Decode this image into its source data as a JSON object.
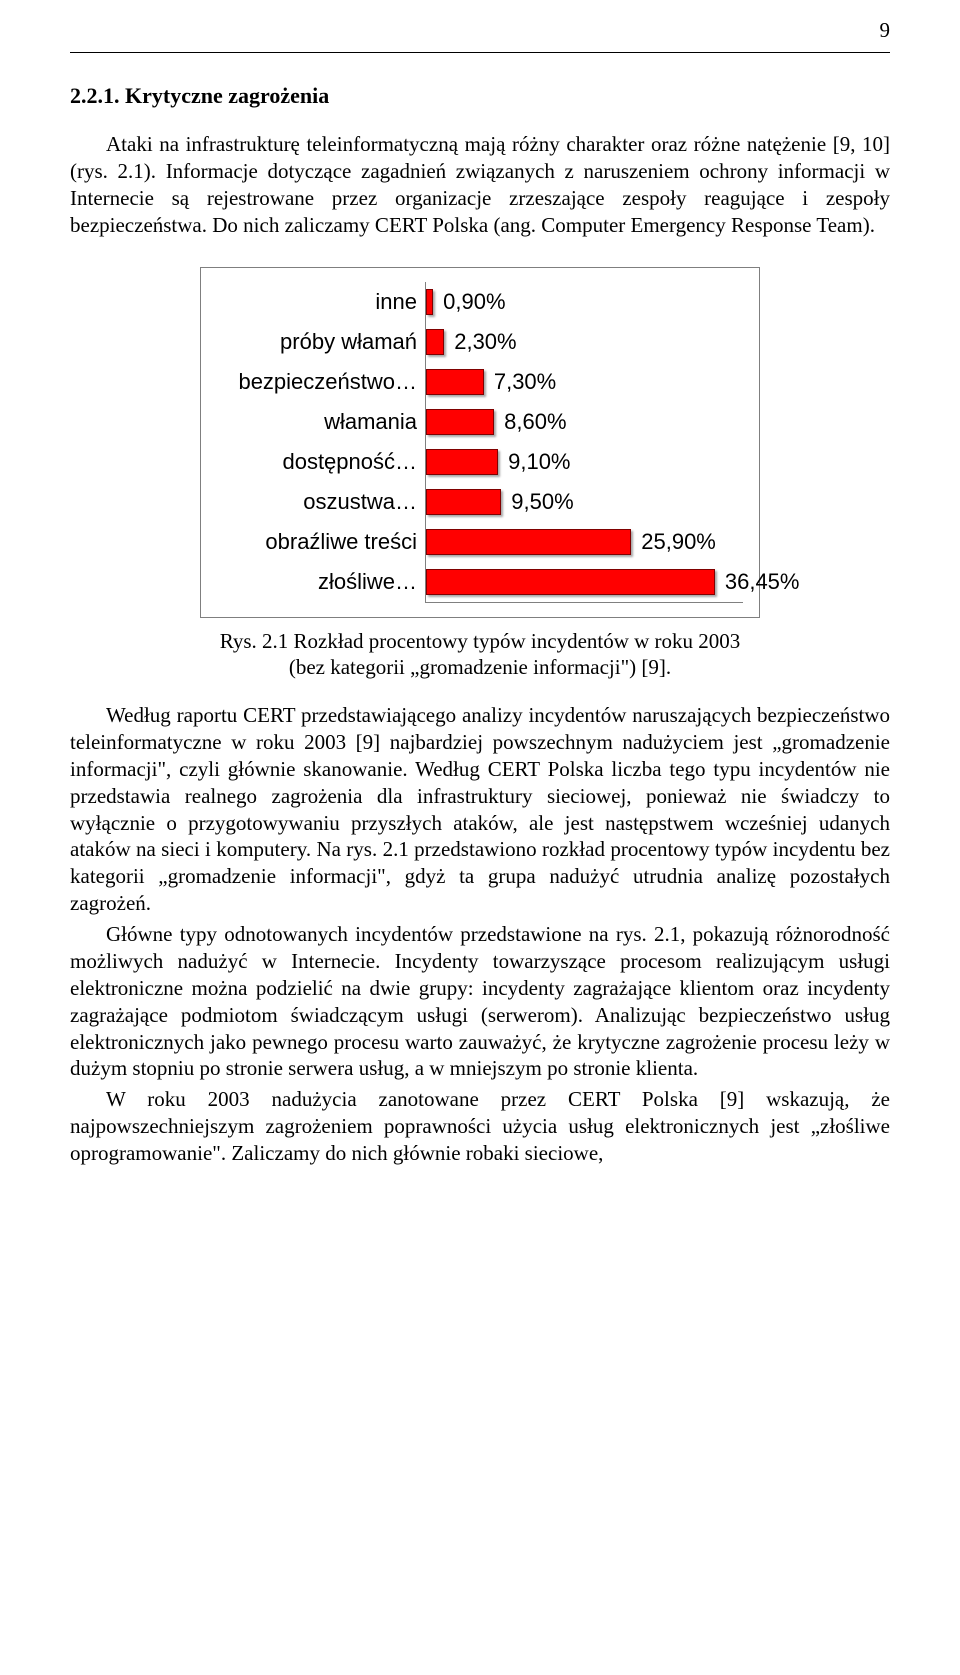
{
  "page_number": "9",
  "heading": "2.2.1. Krytyczne zagrożenia",
  "para1": "Ataki na infrastrukturę teleinformatyczną mają różny charakter oraz różne natężenie [9, 10] (rys. 2.1). Informacje dotyczące zagadnień związanych z naruszeniem ochrony informacji w Internecie są rejestrowane przez organizacje zrzeszające zespoły reagujące i zespoły bezpieczeństwa. Do nich zaliczamy CERT Polska (ang. Computer Emergency Response Team).",
  "chart": {
    "type": "bar-horizontal",
    "bar_color": "#ff0000",
    "bar_border_color": "#800000",
    "border_color": "#7f7f7f",
    "axis_color": "#808080",
    "background_color": "#ffffff",
    "label_font_family": "Arial",
    "label_fontsize": 22,
    "value_fontsize": 22,
    "xmax": 40,
    "categories": [
      {
        "label": "inne",
        "value": 0.9,
        "display": "0,90%"
      },
      {
        "label": "próby włamań",
        "value": 2.3,
        "display": "2,30%"
      },
      {
        "label": "bezpieczeństwo…",
        "value": 7.3,
        "display": "7,30%"
      },
      {
        "label": "włamania",
        "value": 8.6,
        "display": "8,60%"
      },
      {
        "label": "dostępność…",
        "value": 9.1,
        "display": "9,10%"
      },
      {
        "label": "oszustwa…",
        "value": 9.5,
        "display": "9,50%"
      },
      {
        "label": "obraźliwe treści",
        "value": 25.9,
        "display": "25,90%"
      },
      {
        "label": "złośliwe…",
        "value": 36.45,
        "display": "36,45%"
      }
    ]
  },
  "caption_line1": "Rys. 2.1 Rozkład procentowy typów incydentów w roku 2003",
  "caption_line2": "(bez kategorii „gromadzenie informacji\") [9].",
  "para2": "Według raportu CERT przedstawiającego analizy incydentów naruszających bezpieczeństwo teleinformatyczne w roku 2003 [9] najbardziej powszechnym nadużyciem jest „gromadzenie informacji\", czyli głównie skanowanie. Według CERT Polska liczba tego typu incydentów nie przedstawia realnego zagrożenia dla infrastruktury sieciowej, ponieważ nie świadczy to wyłącznie o przygotowywaniu przyszłych ataków, ale jest następstwem wcześniej udanych ataków na sieci i komputery. Na rys. 2.1 przedstawiono rozkład procentowy typów incydentu bez kategorii „gromadzenie informacji\", gdyż ta grupa nadużyć utrudnia analizę pozostałych zagrożeń.",
  "para3": "Główne typy odnotowanych incydentów przedstawione na rys. 2.1, pokazują różnorodność możliwych nadużyć w Internecie. Incydenty towarzyszące procesom realizującym usługi elektroniczne można podzielić na dwie grupy: incydenty zagrażające klientom oraz incydenty zagrażające podmiotom świadczącym usługi (serwerom). Analizując bezpieczeństwo usług elektronicznych jako pewnego procesu warto zauważyć, że krytyczne zagrożenie procesu leży w dużym stopniu po stronie serwera usług, a w mniejszym po stronie klienta.",
  "para4": "W roku 2003 nadużycia zanotowane przez CERT Polska [9] wskazują, że najpowszechniejszym zagrożeniem poprawności użycia usług elektronicznych jest „złośliwe oprogramowanie\". Zaliczamy do nich głównie robaki sieciowe,"
}
